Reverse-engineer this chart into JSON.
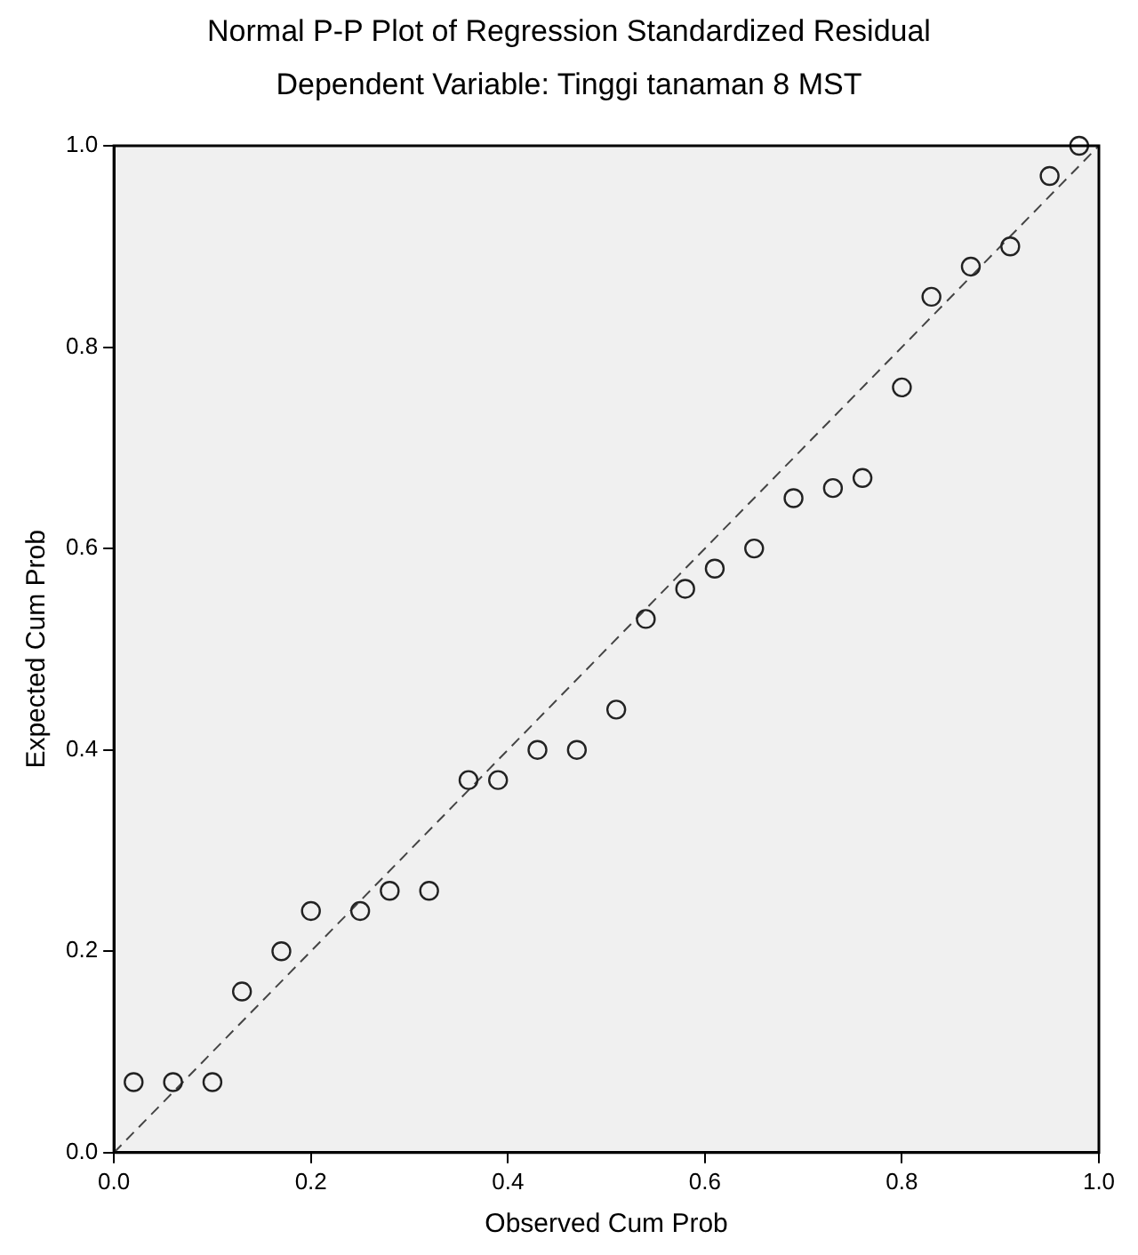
{
  "chart_data": {
    "type": "scatter",
    "title": "Normal P-P Plot of Regression Standardized Residual",
    "subtitle": "Dependent Variable: Tinggi tanaman 8 MST",
    "xlabel": "Observed Cum Prob",
    "ylabel": "Expected Cum Prob",
    "xlim": [
      0,
      1
    ],
    "ylim": [
      0,
      1
    ],
    "xticks": [
      {
        "value": 0,
        "label": "0.0"
      },
      {
        "value": 0.2,
        "label": "0.2"
      },
      {
        "value": 0.4,
        "label": "0.4"
      },
      {
        "value": 0.6,
        "label": "0.6"
      },
      {
        "value": 0.8,
        "label": "0.8"
      },
      {
        "value": 1,
        "label": "1.0"
      }
    ],
    "yticks": [
      {
        "value": 0,
        "label": "0.0"
      },
      {
        "value": 0.2,
        "label": "0.2"
      },
      {
        "value": 0.4,
        "label": "0.4"
      },
      {
        "value": 0.6,
        "label": "0.6"
      },
      {
        "value": 0.8,
        "label": "0.8"
      },
      {
        "value": 1,
        "label": "1.0"
      }
    ],
    "grid": false,
    "legend": false,
    "marker": "circle",
    "series": [
      {
        "color": "#222222",
        "x": [
          0.02,
          0.06,
          0.1,
          0.13,
          0.17,
          0.2,
          0.25,
          0.28,
          0.32,
          0.36,
          0.39,
          0.43,
          0.47,
          0.51,
          0.54,
          0.58,
          0.61,
          0.65,
          0.69,
          0.73,
          0.76,
          0.8,
          0.83,
          0.87,
          0.91,
          0.95,
          0.98
        ],
        "values": [
          0.07,
          0.07,
          0.07,
          0.16,
          0.2,
          0.24,
          0.24,
          0.26,
          0.26,
          0.37,
          0.37,
          0.4,
          0.4,
          0.44,
          0.53,
          0.56,
          0.58,
          0.6,
          0.65,
          0.66,
          0.67,
          0.76,
          0.85,
          0.88,
          0.9,
          0.97,
          1.0
        ]
      },
      {
        "type": "line",
        "color": "#444444",
        "line_style": "dashed",
        "marker": "none",
        "x": [
          0,
          1
        ],
        "values": [
          0,
          1
        ]
      }
    ]
  }
}
